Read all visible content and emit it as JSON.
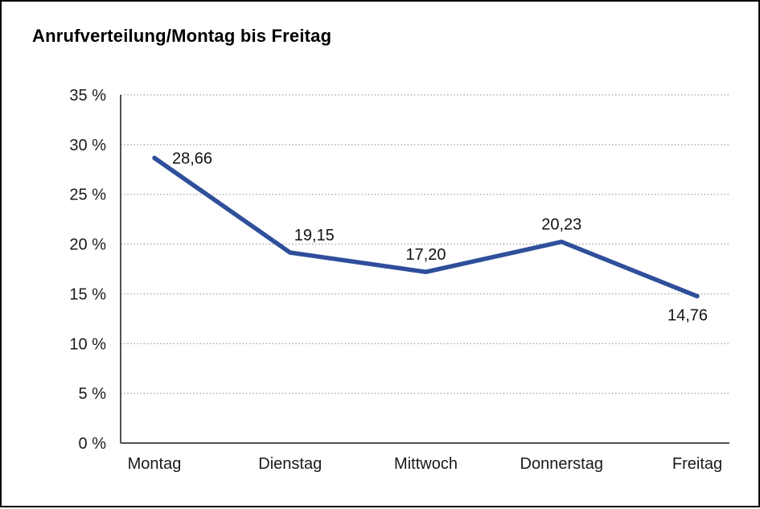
{
  "chart_data": {
    "type": "line",
    "title": "Anrufverteilung/Montag bis Freitag",
    "categories": [
      "Montag",
      "Dienstag",
      "Mittwoch",
      "Donnerstag",
      "Freitag"
    ],
    "values": [
      28.66,
      19.15,
      17.2,
      20.23,
      14.76
    ],
    "value_labels": [
      "28,66",
      "19,15",
      "17,20",
      "20,23",
      "14,76"
    ],
    "label_placement": [
      "right",
      "above",
      "above",
      "above",
      "below"
    ],
    "xlabel": "",
    "ylabel": "",
    "ylim": [
      0,
      35
    ],
    "y_ticks": [
      0,
      5,
      10,
      15,
      20,
      25,
      30,
      35
    ],
    "y_tick_labels": [
      "0 %",
      "5 %",
      "10 %",
      "15 %",
      "20 %",
      "25 %",
      "30 %",
      "35 %"
    ],
    "grid": "dotted-horizontal",
    "legend": "none",
    "line_color": "#2f4f9b",
    "axis_color": "#1a1a1a",
    "gridline_color": "#8a8a8a",
    "text_color": "#1a1a1a"
  }
}
